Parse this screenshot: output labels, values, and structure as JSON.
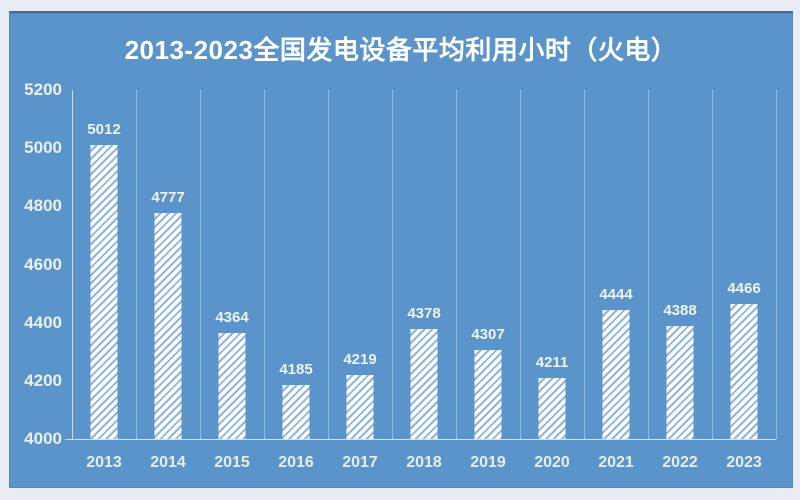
{
  "chart_data": {
    "type": "bar",
    "title": "2013-2023全国发电设备平均利用小时（火电）",
    "categories": [
      "2013",
      "2014",
      "2015",
      "2016",
      "2017",
      "2018",
      "2019",
      "2020",
      "2021",
      "2022",
      "2023"
    ],
    "values": [
      5012,
      4777,
      4364,
      4185,
      4219,
      4378,
      4307,
      4211,
      4444,
      4388,
      4466
    ],
    "xlabel": "",
    "ylabel": "",
    "ylim": [
      4000,
      5200
    ],
    "ytick_interval": 200,
    "ytick_labels": [
      "5200",
      "5000",
      "4800",
      "4600",
      "4400",
      "4200",
      "4000"
    ],
    "data_labels_shown": true,
    "legend": "none",
    "grid": "vertical-category-separators",
    "bar_style": "white-diagonal-hatch"
  },
  "colors": {
    "panel_background": "#5b94cb",
    "outer_background": "#e9ecf5",
    "panel_border_top": "#3e6da4",
    "bar_fill": "#ffffff",
    "bar_hatch_stripe": "#8db5dd",
    "gridline": "rgba(255,255,255,0.35)",
    "axis_line": "rgba(255,255,255,0.72)",
    "title_text": "#ffffff",
    "label_text": "#eef5fc"
  }
}
